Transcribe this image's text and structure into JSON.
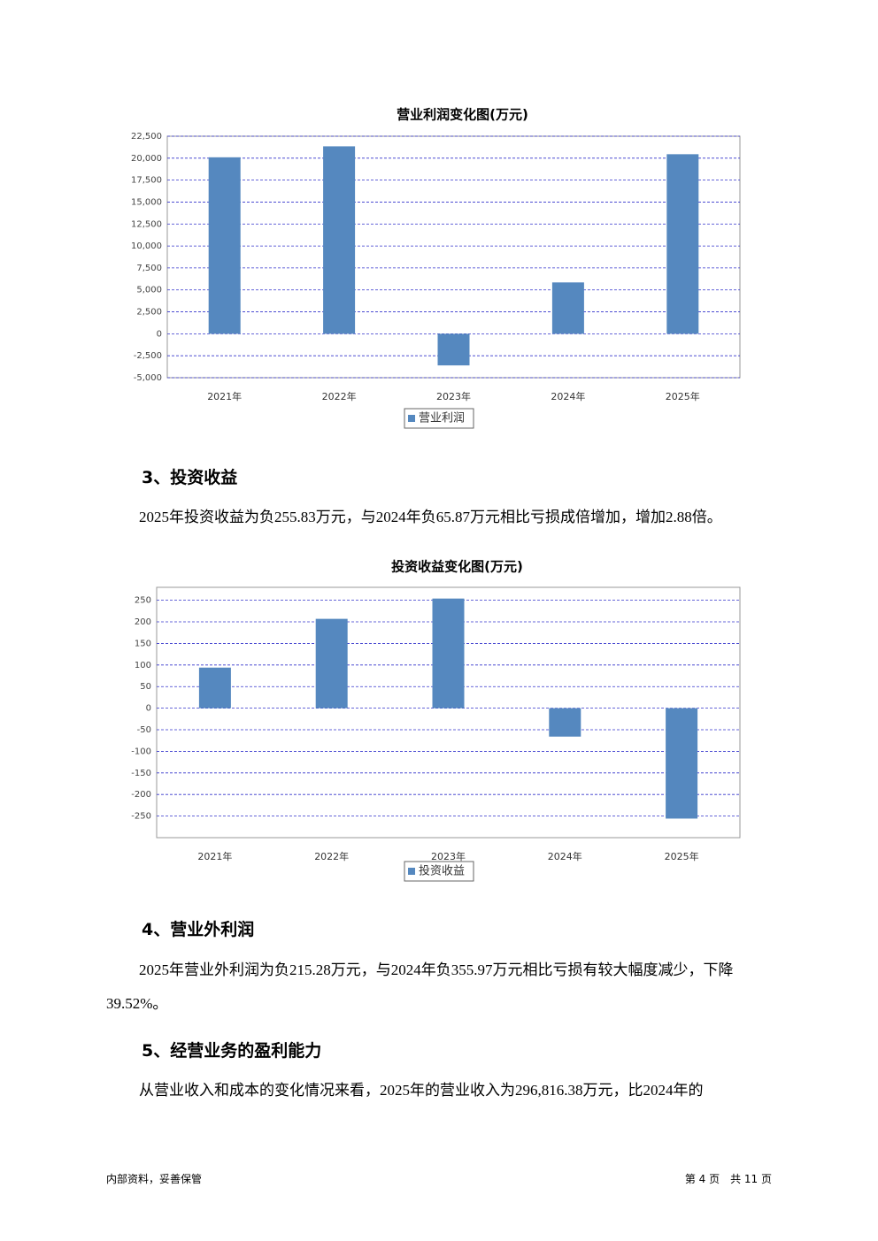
{
  "chart_data": [
    {
      "type": "bar",
      "title": "营业利润变化图(万元)",
      "categories": [
        "2021年",
        "2022年",
        "2023年",
        "2024年",
        "2025年"
      ],
      "series": [
        {
          "name": "营业利润",
          "color": "#5588bf",
          "values": [
            20100,
            21350,
            -3600,
            5850,
            20450
          ]
        }
      ],
      "ylim": [
        -5000,
        22500
      ],
      "yticks": [
        {
          "value": -5000,
          "label": "-5,000"
        },
        {
          "value": -2500,
          "label": "-2,500"
        },
        0,
        {
          "value": 2500,
          "label": "2,500"
        },
        {
          "value": 5000,
          "label": "5,000"
        },
        {
          "value": 7500,
          "label": "7,500"
        },
        {
          "value": 10000,
          "label": "10,000"
        },
        {
          "value": 12500,
          "label": "12,500"
        },
        {
          "value": 15000,
          "label": "15,000"
        },
        {
          "value": 17500,
          "label": "17,500"
        },
        {
          "value": 20000,
          "label": "20,000"
        },
        {
          "value": 22500,
          "label": "22,500"
        }
      ],
      "grid": true
    },
    {
      "type": "bar",
      "title": "投资收益变化图(万元)",
      "categories": [
        "2021年",
        "2022年",
        "2023年",
        "2024年",
        "2025年"
      ],
      "series": [
        {
          "name": "投资收益",
          "color": "#5588bf",
          "values": [
            94,
            207,
            254,
            -65.87,
            -255.83
          ]
        }
      ],
      "ylim": [
        -300,
        280
      ],
      "yticks": [
        -250,
        -200,
        -150,
        -100,
        -50,
        0,
        50,
        100,
        150,
        200,
        250
      ],
      "grid": true
    }
  ],
  "document": {
    "heading_3": "3、投资收益",
    "paragraph_3": "2025年投资收益为负255.83万元，与2024年负65.87万元相比亏损成倍增加，增加2.88倍。",
    "heading_4": "4、营业外利润",
    "paragraph_4": "2025年营业外利润为负215.28万元，与2024年负355.97万元相比亏损有较大幅度减少，下降39.52%。",
    "heading_5": "5、经营业务的盈利能力",
    "paragraph_5": "从营业收入和成本的变化情况来看，2025年的营业收入为296,816.38万元，比2024年的",
    "footer_left": "内部资料，妥善保管",
    "footer_right": "第 4 页　共 11 页"
  }
}
